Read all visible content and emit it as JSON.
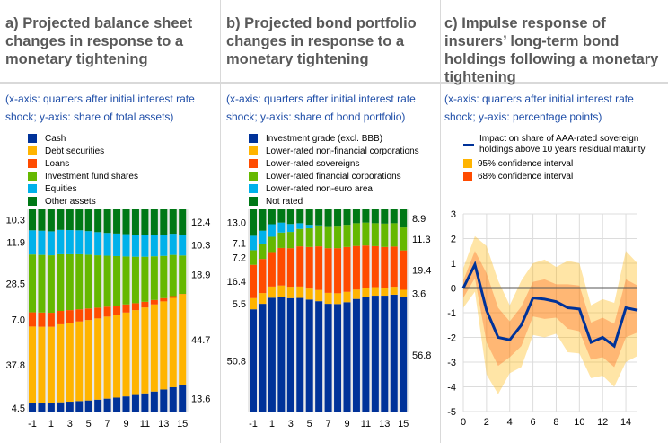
{
  "panels": [
    {
      "id": "a",
      "title": "a) Projected balance sheet changes in response to a monetary tightening",
      "subtitle": "(x-axis: quarters after initial interest rate shock; y-axis: share of total assets)"
    },
    {
      "id": "b",
      "title": "b) Projected bond portfolio changes in response to a monetary tightening",
      "subtitle": "(x-axis: quarters after initial interest rate shock; y-axis: share of bond portfolio)"
    },
    {
      "id": "c",
      "title": "c) Impulse response of insurers’ long-term bond holdings following a monetary tightening",
      "subtitle": "(x-axis: quarters after initial interest rate shock; y-axis: percentage points)"
    }
  ],
  "chart_data": [
    {
      "type": "bar",
      "stacked": true,
      "categories": [
        "-1",
        "0",
        "1",
        "2",
        "3",
        "4",
        "5",
        "6",
        "7",
        "8",
        "9",
        "10",
        "11",
        "12",
        "13",
        "14",
        "15"
      ],
      "x_tick_labels": [
        "-1",
        "1",
        "3",
        "5",
        "7",
        "9",
        "11",
        "13",
        "15"
      ],
      "ylim": [
        0,
        100
      ],
      "legend_position": "top-left",
      "series": [
        {
          "name": "Cash",
          "color": "#003299",
          "values": [
            4.5,
            4.6,
            4.8,
            5.0,
            5.3,
            5.6,
            5.9,
            6.3,
            6.8,
            7.3,
            7.9,
            8.6,
            9.4,
            10.3,
            11.3,
            12.4,
            13.6
          ]
        },
        {
          "name": "Debt securities",
          "color": "#ffb400",
          "values": [
            37.8,
            37.6,
            37.4,
            38.4,
            38.8,
            39.2,
            39.6,
            40.0,
            40.4,
            40.8,
            41.3,
            41.8,
            42.3,
            42.9,
            43.4,
            44.0,
            44.7
          ]
        },
        {
          "name": "Loans",
          "color": "#ff4b00",
          "values": [
            7.0,
            7.0,
            6.9,
            6.6,
            6.3,
            6.0,
            5.7,
            5.3,
            4.9,
            4.5,
            4.0,
            3.4,
            2.8,
            2.2,
            1.6,
            0.9,
            0.1
          ]
        },
        {
          "name": "Investment fund shares",
          "color": "#65b800",
          "values": [
            28.5,
            28.4,
            28.3,
            27.9,
            27.5,
            27.1,
            26.5,
            25.8,
            25.1,
            24.4,
            23.6,
            22.9,
            22.2,
            21.5,
            20.8,
            20.3,
            18.9
          ]
        },
        {
          "name": "Equities",
          "color": "#00b1ea",
          "values": [
            11.9,
            11.9,
            11.8,
            12.0,
            11.9,
            11.8,
            11.6,
            11.4,
            11.2,
            11.1,
            11.0,
            10.9,
            10.8,
            10.6,
            10.5,
            10.4,
            10.3
          ]
        },
        {
          "name": "Other assets",
          "color": "#007816",
          "values": [
            10.3,
            10.5,
            10.8,
            10.1,
            10.2,
            10.3,
            10.7,
            11.2,
            11.6,
            11.9,
            12.2,
            12.4,
            12.5,
            12.5,
            12.4,
            12.0,
            12.4
          ]
        }
      ],
      "data_labels_left": [
        "10.3",
        "11.9",
        "28.5",
        "7.0",
        "37.8",
        "4.5"
      ],
      "data_labels_right": [
        "12.4",
        "10.3",
        "18.9",
        "44.7",
        "13.6"
      ]
    },
    {
      "type": "bar",
      "stacked": true,
      "categories": [
        "-1",
        "0",
        "1",
        "2",
        "3",
        "4",
        "5",
        "6",
        "7",
        "8",
        "9",
        "10",
        "11",
        "12",
        "13",
        "14",
        "15"
      ],
      "x_tick_labels": [
        "-1",
        "1",
        "3",
        "5",
        "7",
        "9",
        "11",
        "13",
        "15"
      ],
      "ylim": [
        0,
        100
      ],
      "legend_position": "top-left",
      "series": [
        {
          "name": "Investment grade (excl. BBB)",
          "color": "#003299",
          "values": [
            50.8,
            53.5,
            56.5,
            56.7,
            56.3,
            56.4,
            55.6,
            54.8,
            53.5,
            53.4,
            54.3,
            55.9,
            56.8,
            57.5,
            57.5,
            58.0,
            56.8
          ]
        },
        {
          "name": "Lower-rated non-financial corporations",
          "color": "#ffb400",
          "values": [
            5.5,
            5.3,
            5.5,
            5.8,
            5.6,
            5.6,
            5.4,
            5.5,
            5.4,
            5.3,
            5.1,
            4.6,
            4.6,
            4.2,
            4.0,
            3.9,
            3.6
          ]
        },
        {
          "name": "Lower-rated sovereigns",
          "color": "#ff4b00",
          "values": [
            16.4,
            16.8,
            17.0,
            18.5,
            19.0,
            19.8,
            20.5,
            21.5,
            22.0,
            22.2,
            22.1,
            21.5,
            20.8,
            20.2,
            20.0,
            19.8,
            19.4
          ]
        },
        {
          "name": "Lower-rated financial corporations",
          "color": "#65b800",
          "values": [
            7.2,
            7.4,
            7.5,
            7.6,
            8.0,
            8.6,
            9.2,
            9.8,
            10.4,
            10.6,
            10.9,
            11.2,
            11.3,
            11.3,
            11.5,
            11.5,
            11.3
          ]
        },
        {
          "name": "Lower-rated non-euro area",
          "color": "#00b1ea",
          "values": [
            7.1,
            6.5,
            6.2,
            4.9,
            3.9,
            2.8,
            1.7,
            0.6,
            0,
            0,
            0,
            0,
            0,
            0,
            0,
            0,
            0
          ]
        },
        {
          "name": "Not rated",
          "color": "#007816",
          "values": [
            13.0,
            10.5,
            7.3,
            6.5,
            7.2,
            6.8,
            7.6,
            7.8,
            8.7,
            8.5,
            7.6,
            6.8,
            6.5,
            6.8,
            7.0,
            6.8,
            8.9
          ]
        }
      ],
      "data_labels_left": [
        "13.0",
        "7.1",
        "7.2",
        "16.4",
        "5.5",
        "50.8"
      ],
      "data_labels_right": [
        "8.9",
        "11.3",
        "19.4",
        "3.6",
        "56.8"
      ]
    },
    {
      "type": "line",
      "x": [
        0,
        1,
        2,
        3,
        4,
        5,
        6,
        7,
        8,
        9,
        10,
        11,
        12,
        13,
        14,
        15
      ],
      "xlim": [
        0,
        15
      ],
      "ylim": [
        -5,
        3
      ],
      "x_tick_labels": [
        "0",
        "2",
        "4",
        "6",
        "8",
        "10",
        "12",
        "14"
      ],
      "y_tick_labels": [
        "3",
        "2",
        "1",
        "0",
        "-1",
        "-2",
        "-3",
        "-4",
        "-5"
      ],
      "grid": true,
      "legend_position": "top-left",
      "series": [
        {
          "name": "Impact on share of AAA-rated sovereign holdings above 10 years residual maturity",
          "color": "#003299",
          "values": [
            0,
            0.95,
            -0.9,
            -2.0,
            -2.1,
            -1.5,
            -0.4,
            -0.45,
            -0.55,
            -0.8,
            -0.85,
            -2.2,
            -2.0,
            -2.35,
            -0.8,
            -0.9
          ]
        }
      ],
      "bands": [
        {
          "name": "95% confidence interval",
          "color": "#ffb400",
          "upper": [
            0.8,
            2.1,
            1.7,
            0.3,
            -0.7,
            0.3,
            1.0,
            1.15,
            0.85,
            1.1,
            1.0,
            -0.7,
            -0.45,
            -0.6,
            1.5,
            1.0
          ],
          "lower": [
            -0.8,
            -0.15,
            -3.5,
            -4.3,
            -3.45,
            -3.2,
            -1.9,
            -2.0,
            -1.85,
            -2.6,
            -2.65,
            -3.65,
            -3.55,
            -4.0,
            -3.0,
            -2.75
          ]
        },
        {
          "name": "68% confidence interval",
          "color": "#ff4b00",
          "upper": [
            0.3,
            1.5,
            0.6,
            -0.8,
            -1.35,
            -0.75,
            0.25,
            0.35,
            0.15,
            0.15,
            0.1,
            -1.4,
            -1.2,
            -1.45,
            0.35,
            0.1
          ],
          "lower": [
            -0.4,
            0.4,
            -2.2,
            -3.15,
            -2.8,
            -2.35,
            -1.15,
            -1.25,
            -1.2,
            -1.65,
            -1.75,
            -2.9,
            -2.8,
            -3.2,
            -2.0,
            -1.8
          ]
        }
      ]
    }
  ]
}
